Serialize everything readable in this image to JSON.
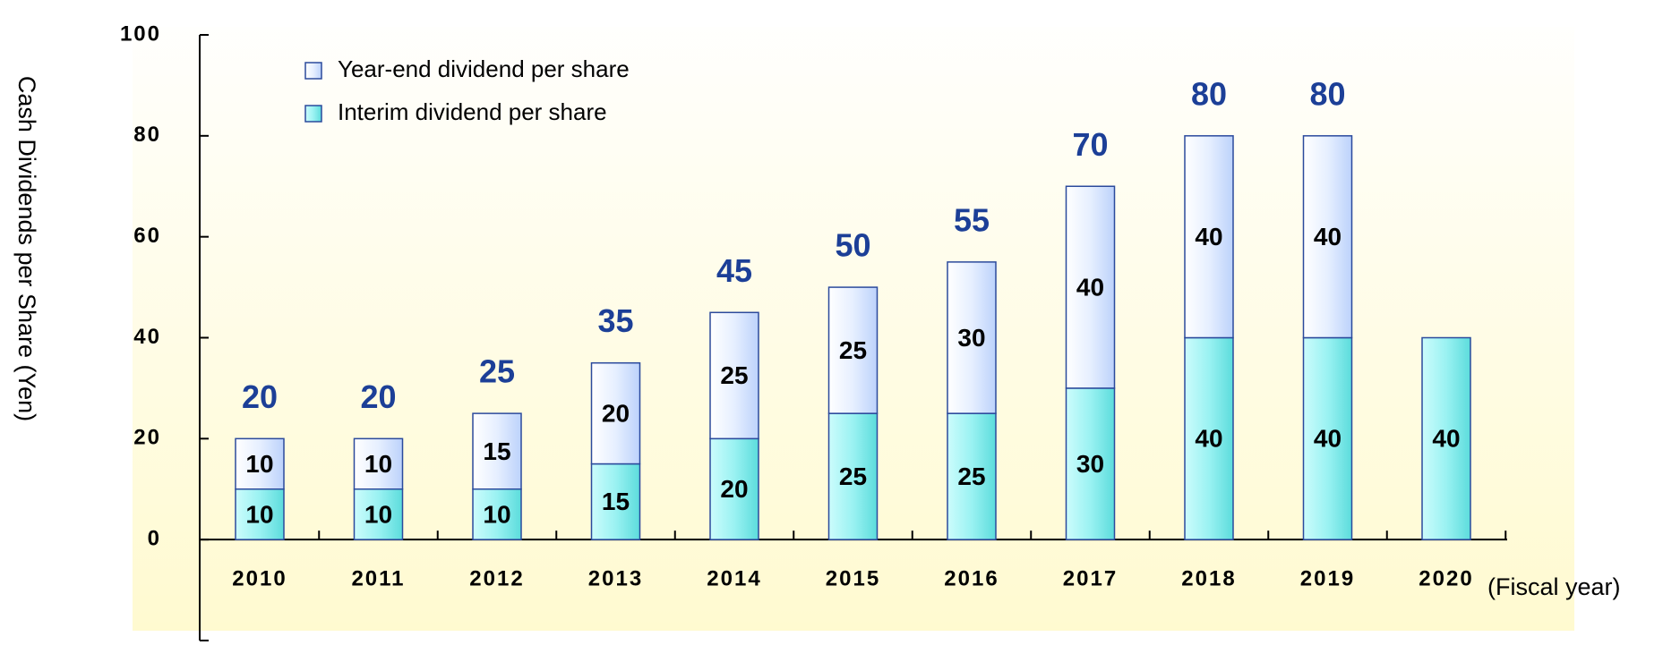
{
  "chart_data": {
    "type": "bar",
    "stacked": true,
    "ylabel": "Cash Dividends per Share (Yen)",
    "xlabel": "(Fiscal year)",
    "categories": [
      "2010",
      "2011",
      "2012",
      "2013",
      "2014",
      "2015",
      "2016",
      "2017",
      "2018",
      "2019",
      "2020"
    ],
    "series": [
      {
        "name": "Interim dividend per share",
        "color": "#7ee8e8",
        "values": [
          10,
          10,
          10,
          15,
          20,
          25,
          25,
          30,
          40,
          40,
          40
        ]
      },
      {
        "name": "Year-end dividend per share",
        "color": "#d4e4ff",
        "values": [
          10,
          10,
          15,
          20,
          25,
          25,
          30,
          40,
          40,
          40,
          null
        ]
      }
    ],
    "totals": [
      20,
      20,
      25,
      35,
      45,
      50,
      55,
      70,
      80,
      80,
      null
    ],
    "ylim": [
      -20,
      100
    ],
    "yticks": [
      0,
      20,
      40,
      60,
      80,
      100
    ],
    "grid": false
  }
}
